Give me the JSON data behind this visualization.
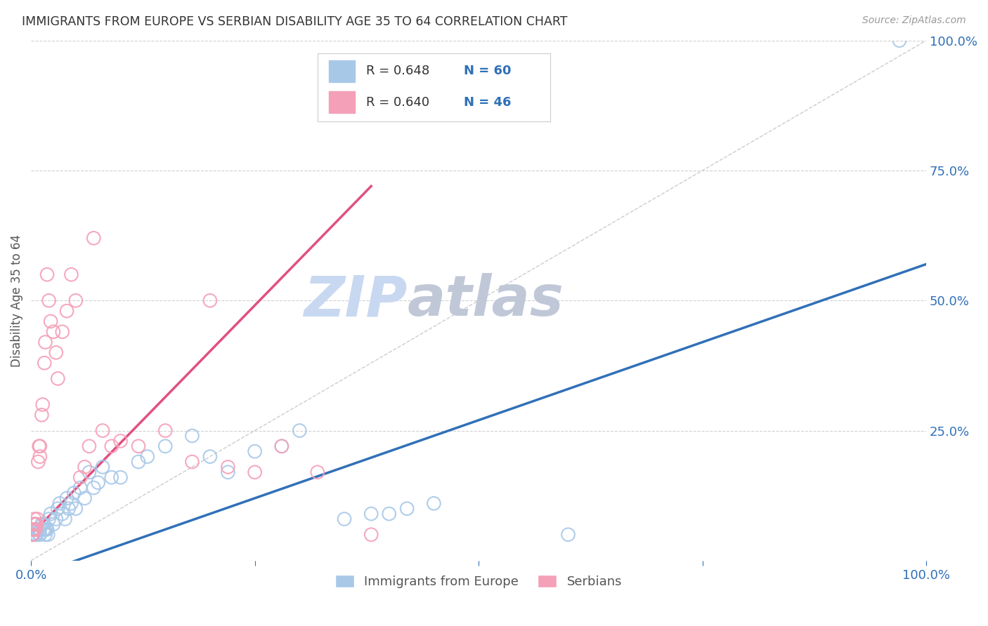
{
  "title": "IMMIGRANTS FROM EUROPE VS SERBIAN DISABILITY AGE 35 TO 64 CORRELATION CHART",
  "source": "Source: ZipAtlas.com",
  "ylabel": "Disability Age 35 to 64",
  "xlim": [
    0.0,
    1.0
  ],
  "ylim": [
    0.0,
    1.0
  ],
  "blue_color": "#a8c8e8",
  "pink_color": "#f4a0b8",
  "blue_line_color": "#3070b8",
  "pink_line_color": "#e05080",
  "blue_R": "0.648",
  "blue_N": "60",
  "pink_R": "0.640",
  "pink_N": "46",
  "legend_label_blue": "Immigrants from Europe",
  "legend_label_pink": "Serbians",
  "blue_scatter_x": [
    0.001,
    0.002,
    0.002,
    0.003,
    0.003,
    0.004,
    0.005,
    0.005,
    0.006,
    0.006,
    0.007,
    0.008,
    0.009,
    0.01,
    0.01,
    0.012,
    0.013,
    0.014,
    0.015,
    0.016,
    0.017,
    0.018,
    0.019,
    0.02,
    0.022,
    0.025,
    0.028,
    0.03,
    0.032,
    0.035,
    0.038,
    0.04,
    0.042,
    0.045,
    0.048,
    0.05,
    0.055,
    0.06,
    0.065,
    0.07,
    0.075,
    0.08,
    0.09,
    0.1,
    0.12,
    0.13,
    0.15,
    0.18,
    0.2,
    0.22,
    0.25,
    0.28,
    0.3,
    0.35,
    0.38,
    0.4,
    0.42,
    0.45,
    0.6,
    0.97
  ],
  "blue_scatter_y": [
    0.05,
    0.06,
    0.05,
    0.07,
    0.05,
    0.06,
    0.06,
    0.05,
    0.05,
    0.07,
    0.06,
    0.06,
    0.05,
    0.05,
    0.06,
    0.07,
    0.07,
    0.06,
    0.06,
    0.05,
    0.06,
    0.06,
    0.05,
    0.08,
    0.09,
    0.07,
    0.08,
    0.1,
    0.11,
    0.09,
    0.08,
    0.12,
    0.1,
    0.11,
    0.13,
    0.1,
    0.14,
    0.12,
    0.17,
    0.14,
    0.15,
    0.18,
    0.16,
    0.16,
    0.19,
    0.2,
    0.22,
    0.24,
    0.2,
    0.17,
    0.21,
    0.22,
    0.25,
    0.08,
    0.09,
    0.09,
    0.1,
    0.11,
    0.05,
    1.0
  ],
  "pink_scatter_x": [
    0.001,
    0.001,
    0.002,
    0.002,
    0.003,
    0.003,
    0.004,
    0.004,
    0.005,
    0.005,
    0.006,
    0.007,
    0.008,
    0.009,
    0.01,
    0.01,
    0.012,
    0.013,
    0.015,
    0.016,
    0.018,
    0.02,
    0.022,
    0.025,
    0.028,
    0.03,
    0.035,
    0.04,
    0.045,
    0.05,
    0.055,
    0.06,
    0.065,
    0.07,
    0.08,
    0.09,
    0.1,
    0.12,
    0.15,
    0.18,
    0.2,
    0.22,
    0.25,
    0.28,
    0.32,
    0.38
  ],
  "pink_scatter_y": [
    0.05,
    0.06,
    0.05,
    0.06,
    0.07,
    0.06,
    0.07,
    0.08,
    0.06,
    0.07,
    0.07,
    0.08,
    0.19,
    0.22,
    0.2,
    0.22,
    0.28,
    0.3,
    0.38,
    0.42,
    0.55,
    0.5,
    0.46,
    0.44,
    0.4,
    0.35,
    0.44,
    0.48,
    0.55,
    0.5,
    0.16,
    0.18,
    0.22,
    0.62,
    0.25,
    0.22,
    0.23,
    0.22,
    0.25,
    0.19,
    0.5,
    0.18,
    0.17,
    0.22,
    0.17,
    0.05
  ],
  "blue_line": [
    0.0,
    1.0,
    -0.03,
    0.57
  ],
  "pink_line": [
    0.0,
    0.38,
    0.05,
    0.72
  ],
  "diag_line": [
    0.0,
    1.0,
    0.0,
    1.0
  ],
  "background_color": "#ffffff",
  "grid_color": "#d0d0d0",
  "title_color": "#333333",
  "source_color": "#999999",
  "axis_label_color": "#3070b8",
  "watermark_zip_color": "#c8d8f0",
  "watermark_atlas_color": "#c0c8d8"
}
